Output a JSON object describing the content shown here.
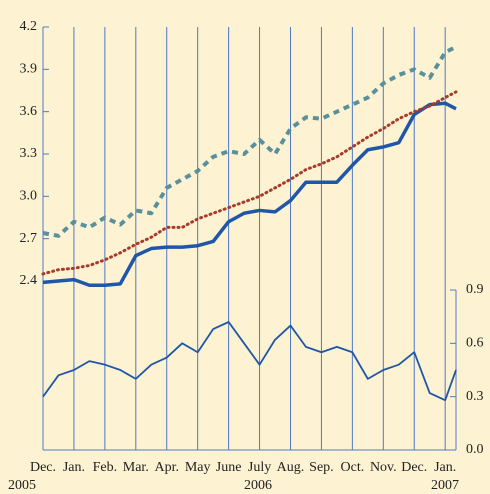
{
  "chart_data": {
    "type": "line",
    "x": [
      0,
      0.5,
      1,
      1.5,
      2,
      2.5,
      3,
      3.5,
      4,
      4.5,
      5,
      5.5,
      6,
      6.5,
      7,
      7.5,
      8,
      8.5,
      9,
      9.5,
      10,
      10.5,
      11,
      11.5,
      12,
      12.5,
      13,
      13.35
    ],
    "series": [
      {
        "color": "#1f56a8",
        "style": "thick",
        "values": [
          2.39,
          2.4,
          2.41,
          2.37,
          2.37,
          2.38,
          2.58,
          2.63,
          2.64,
          2.64,
          2.65,
          2.68,
          2.82,
          2.88,
          2.9,
          2.89,
          2.97,
          3.1,
          3.1,
          3.1,
          3.22,
          3.33,
          3.35,
          3.38,
          3.58,
          3.65,
          3.66,
          3.62
        ]
      },
      {
        "color": "#a83a2a",
        "style": "dotted",
        "values": [
          2.45,
          2.48,
          2.49,
          2.51,
          2.55,
          2.6,
          2.66,
          2.71,
          2.78,
          2.78,
          2.84,
          2.88,
          2.92,
          2.96,
          3.0,
          3.06,
          3.12,
          3.19,
          3.23,
          3.28,
          3.35,
          3.42,
          3.48,
          3.55,
          3.6,
          3.64,
          3.7,
          3.74
        ]
      },
      {
        "color": "#5a8f9c",
        "style": "dashed",
        "values": [
          2.74,
          2.72,
          2.82,
          2.78,
          2.85,
          2.8,
          2.9,
          2.88,
          3.06,
          3.12,
          3.18,
          3.28,
          3.32,
          3.3,
          3.4,
          3.3,
          3.48,
          3.56,
          3.55,
          3.6,
          3.65,
          3.7,
          3.8,
          3.86,
          3.9,
          3.84,
          4.02,
          4.06
        ]
      },
      {
        "color": "#1f56a8",
        "style": "thin",
        "axis": "y2",
        "values": [
          0.3,
          0.42,
          0.45,
          0.5,
          0.48,
          0.45,
          0.4,
          0.48,
          0.52,
          0.6,
          0.55,
          0.68,
          0.72,
          0.6,
          0.48,
          0.62,
          0.7,
          0.58,
          0.55,
          0.58,
          0.55,
          0.4,
          0.45,
          0.48,
          0.55,
          0.32,
          0.28,
          0.45
        ]
      }
    ],
    "xlim": [
      0,
      13.35
    ],
    "xticks": [
      {
        "value": 0,
        "label": "Dec."
      },
      {
        "value": 1,
        "label": "Jan."
      },
      {
        "value": 2,
        "label": "Feb."
      },
      {
        "value": 3,
        "label": "Mar."
      },
      {
        "value": 4,
        "label": "Apr."
      },
      {
        "value": 5,
        "label": "May"
      },
      {
        "value": 6,
        "label": "June"
      },
      {
        "value": 7,
        "label": "July"
      },
      {
        "value": 8,
        "label": "Aug."
      },
      {
        "value": 9,
        "label": "Sep."
      },
      {
        "value": 10,
        "label": "Oct."
      },
      {
        "value": 11,
        "label": "Nov."
      },
      {
        "value": 12,
        "label": "Dec."
      },
      {
        "value": 13,
        "label": "Jan."
      }
    ],
    "ylim": [
      2.4,
      4.2
    ],
    "yticks": [
      {
        "value": 2.4,
        "label": "2.4"
      },
      {
        "value": 2.7,
        "label": "2.7"
      },
      {
        "value": 3.0,
        "label": "3.0"
      },
      {
        "value": 3.3,
        "label": "3.3"
      },
      {
        "value": 3.6,
        "label": "3.6"
      },
      {
        "value": 3.9,
        "label": "3.9"
      },
      {
        "value": 4.2,
        "label": "4.2"
      }
    ],
    "y2lim": [
      0,
      0.9
    ],
    "y2ticks": [
      {
        "value": 0,
        "label": "0.0"
      },
      {
        "value": 0.3,
        "label": "0.3"
      },
      {
        "value": 0.6,
        "label": "0.6"
      },
      {
        "value": 0.9,
        "label": "0.9"
      }
    ],
    "annotations": [
      "2005",
      "2006",
      "2007"
    ],
    "grid": true
  }
}
